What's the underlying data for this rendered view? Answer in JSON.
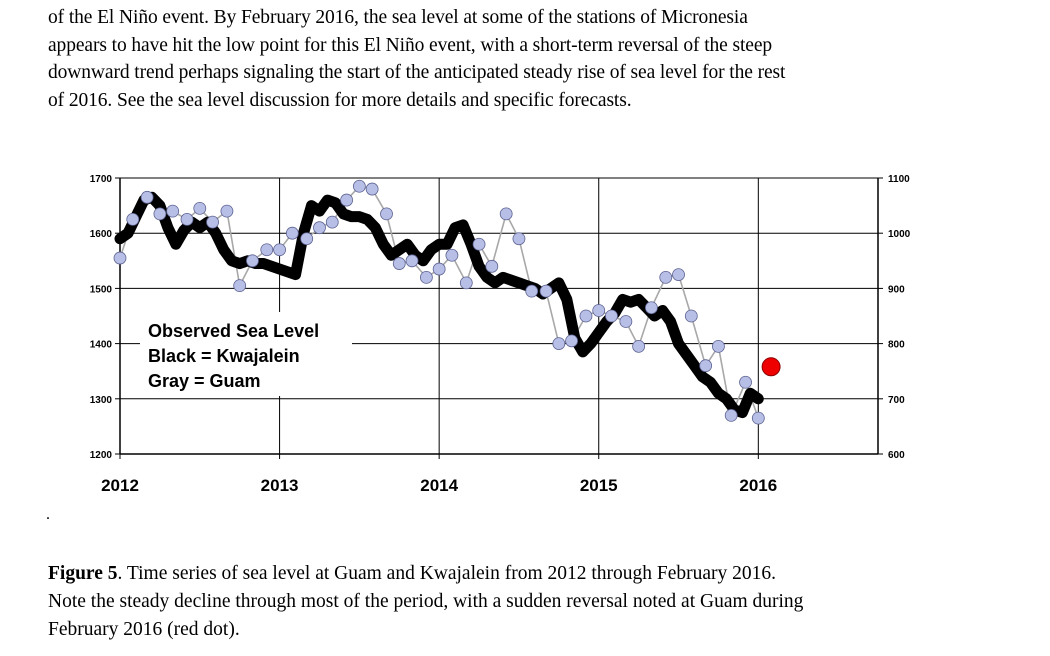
{
  "paragraph_lines": [
    "of the El Niño event.  By February 2016, the sea level at some of the stations of Micronesia",
    "appears to have hit the low point for this El Niño event, with a short-term reversal of the steep",
    "downward trend perhaps signaling the start of the anticipated steady rise of sea level for the rest",
    "of 2016.  See the sea level discussion for more details and specific forecasts."
  ],
  "stray_mark": ".",
  "caption": {
    "label": "Figure 5",
    "line1_rest": ".  Time series of sea level at Guam and Kwajalein from 2012 through February 2016.",
    "line2": "Note the steady decline through most of the period, with a sudden reversal noted at Guam during",
    "line3": "February 2016 (red dot)."
  },
  "chart_data": {
    "type": "line",
    "legend": [
      "Observed Sea Level",
      "Black = Kwajalein",
      "Gray = Guam"
    ],
    "legend_placement": "lower-left",
    "grid": true,
    "x_ticks": [
      "2012",
      "2013",
      "2014",
      "2015",
      "2016"
    ],
    "xlim": [
      2012,
      2016.75
    ],
    "y_left": {
      "range": [
        1200,
        1700
      ],
      "ticks": [
        "1700",
        "1600",
        "1500",
        "1400",
        "1300",
        "1200"
      ]
    },
    "y_right": {
      "range": [
        600,
        1100
      ],
      "ticks": [
        "1100",
        "1000",
        "900",
        "800",
        "700",
        "600"
      ]
    },
    "colors": {
      "kwajalein": "#000000",
      "guam_marker": "#b8bfe6",
      "guam_line": "#a8a8a8",
      "highlight": "#ee0000"
    },
    "series": [
      {
        "name": "Kwajalein",
        "axis": "left",
        "x": [
          2012.0,
          2012.05,
          2012.1,
          2012.15,
          2012.2,
          2012.25,
          2012.3,
          2012.35,
          2012.4,
          2012.45,
          2012.5,
          2012.55,
          2012.6,
          2012.65,
          2012.7,
          2012.75,
          2012.8,
          2012.85,
          2012.9,
          2012.95,
          2013.0,
          2013.05,
          2013.1,
          2013.15,
          2013.2,
          2013.25,
          2013.3,
          2013.35,
          2013.4,
          2013.45,
          2013.5,
          2013.55,
          2013.6,
          2013.65,
          2013.7,
          2013.75,
          2013.8,
          2013.85,
          2013.9,
          2013.95,
          2014.0,
          2014.05,
          2014.1,
          2014.15,
          2014.2,
          2014.25,
          2014.3,
          2014.35,
          2014.4,
          2014.45,
          2014.5,
          2014.55,
          2014.6,
          2014.65,
          2014.7,
          2014.75,
          2014.8,
          2014.85,
          2014.9,
          2014.95,
          2015.0,
          2015.05,
          2015.1,
          2015.15,
          2015.2,
          2015.25,
          2015.3,
          2015.35,
          2015.4,
          2015.45,
          2015.5,
          2015.55,
          2015.6,
          2015.65,
          2015.7,
          2015.75,
          2015.8,
          2015.85,
          2015.9,
          2015.95,
          2016.0
        ],
        "values": [
          1590,
          1600,
          1630,
          1660,
          1665,
          1650,
          1610,
          1580,
          1605,
          1620,
          1610,
          1620,
          1600,
          1570,
          1550,
          1545,
          1550,
          1545,
          1545,
          1540,
          1535,
          1530,
          1525,
          1600,
          1650,
          1640,
          1660,
          1655,
          1635,
          1630,
          1630,
          1625,
          1610,
          1580,
          1560,
          1570,
          1580,
          1560,
          1550,
          1570,
          1580,
          1580,
          1610,
          1615,
          1580,
          1540,
          1520,
          1510,
          1520,
          1515,
          1510,
          1505,
          1500,
          1490,
          1500,
          1510,
          1480,
          1410,
          1385,
          1400,
          1420,
          1440,
          1455,
          1480,
          1475,
          1480,
          1465,
          1450,
          1460,
          1440,
          1400,
          1380,
          1360,
          1340,
          1330,
          1310,
          1300,
          1280,
          1275,
          1310,
          1300
        ]
      },
      {
        "name": "Guam",
        "axis": "left",
        "x": [
          2012.0,
          2012.08,
          2012.17,
          2012.25,
          2012.33,
          2012.42,
          2012.5,
          2012.58,
          2012.67,
          2012.75,
          2012.83,
          2012.92,
          2013.0,
          2013.08,
          2013.17,
          2013.25,
          2013.33,
          2013.42,
          2013.5,
          2013.58,
          2013.67,
          2013.75,
          2013.83,
          2013.92,
          2014.0,
          2014.08,
          2014.17,
          2014.25,
          2014.33,
          2014.42,
          2014.5,
          2014.58,
          2014.67,
          2014.75,
          2014.83,
          2014.92,
          2015.0,
          2015.08,
          2015.17,
          2015.25,
          2015.33,
          2015.42,
          2015.5,
          2015.58,
          2015.67,
          2015.75,
          2015.83,
          2015.92,
          2016.0
        ],
        "values": [
          1555,
          1625,
          1665,
          1635,
          1640,
          1625,
          1645,
          1620,
          1640,
          1505,
          1550,
          1570,
          1570,
          1600,
          1590,
          1610,
          1620,
          1660,
          1685,
          1680,
          1635,
          1545,
          1550,
          1520,
          1535,
          1560,
          1510,
          1580,
          1540,
          1635,
          1590,
          1495,
          1495,
          1400,
          1405,
          1450,
          1460,
          1450,
          1440,
          1395,
          1465,
          1520,
          1525,
          1450,
          1360,
          1395,
          1270,
          1330,
          1265
        ]
      },
      {
        "name": "Guam February 2016",
        "axis": "left",
        "x": [
          2016.08
        ],
        "values": [
          1358
        ]
      }
    ]
  }
}
